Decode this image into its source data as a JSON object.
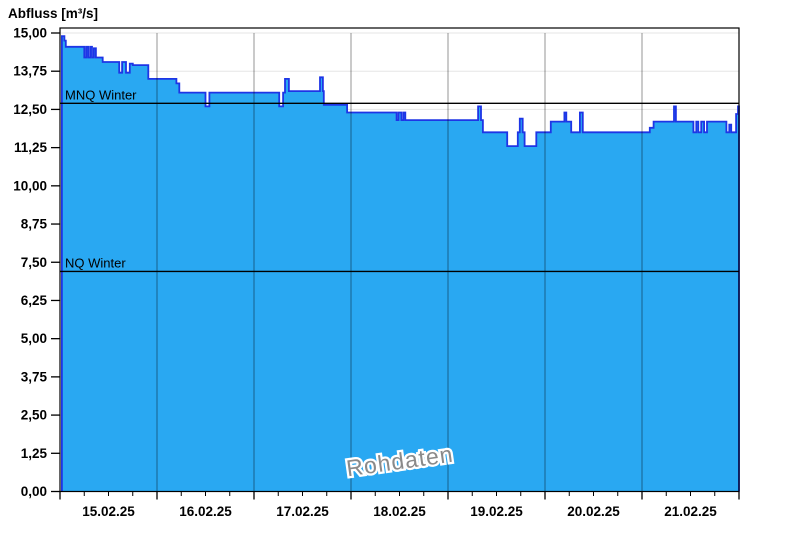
{
  "chart_data": {
    "type": "area",
    "title": "Abfluss [m³/s]",
    "watermark": "Rohdaten",
    "ylim": [
      0,
      15
    ],
    "y_tick_step": 1.25,
    "y_ticks": [
      {
        "label": "15,00",
        "value": 15.0
      },
      {
        "label": "13,75",
        "value": 13.75
      },
      {
        "label": "12,50",
        "value": 12.5
      },
      {
        "label": "11,25",
        "value": 11.25
      },
      {
        "label": "10,00",
        "value": 10.0
      },
      {
        "label": "8,75",
        "value": 8.75
      },
      {
        "label": "7,50",
        "value": 7.5
      },
      {
        "label": "6,25",
        "value": 6.25
      },
      {
        "label": "5,00",
        "value": 5.0
      },
      {
        "label": "3,75",
        "value": 3.75
      },
      {
        "label": "2,50",
        "value": 2.5
      },
      {
        "label": "1,25",
        "value": 1.25
      },
      {
        "label": "0,00",
        "value": 0.0
      }
    ],
    "x_days": [
      "15.02.25",
      "16.02.25",
      "17.02.25",
      "18.02.25",
      "19.02.25",
      "20.02.25",
      "21.02.25"
    ],
    "x_range_days": 7,
    "grid": {
      "vertical_day_lines": true,
      "horizontal_value_lines": true,
      "x_minor_ticks_per_day": 3
    },
    "reference_lines": [
      {
        "label": "MNQ Winter",
        "value": 12.7
      },
      {
        "label": "NQ Winter",
        "value": 7.2
      }
    ],
    "series": [
      {
        "name": "Abfluss Rohdaten",
        "unit": "m³/s",
        "step": true,
        "points": [
          [
            0.02,
            14.9
          ],
          [
            0.045,
            14.75
          ],
          [
            0.06,
            14.55
          ],
          [
            0.24,
            14.55
          ],
          [
            0.25,
            14.2
          ],
          [
            0.27,
            14.55
          ],
          [
            0.29,
            14.2
          ],
          [
            0.31,
            14.55
          ],
          [
            0.33,
            14.2
          ],
          [
            0.35,
            14.5
          ],
          [
            0.37,
            14.2
          ],
          [
            0.44,
            14.05
          ],
          [
            0.6,
            14.05
          ],
          [
            0.61,
            13.7
          ],
          [
            0.64,
            14.05
          ],
          [
            0.67,
            14.05
          ],
          [
            0.68,
            13.7
          ],
          [
            0.71,
            13.7
          ],
          [
            0.72,
            14.0
          ],
          [
            0.75,
            13.95
          ],
          [
            0.91,
            13.5
          ],
          [
            1.19,
            13.5
          ],
          [
            1.2,
            13.35
          ],
          [
            1.23,
            13.05
          ],
          [
            1.49,
            13.05
          ],
          [
            1.5,
            12.6
          ],
          [
            1.54,
            13.05
          ],
          [
            2.25,
            13.05
          ],
          [
            2.26,
            12.6
          ],
          [
            2.3,
            13.05
          ],
          [
            2.32,
            13.5
          ],
          [
            2.36,
            13.1
          ],
          [
            2.67,
            13.1
          ],
          [
            2.68,
            13.55
          ],
          [
            2.71,
            13.1
          ],
          [
            2.72,
            12.65
          ],
          [
            2.95,
            12.65
          ],
          [
            2.96,
            12.4
          ],
          [
            3.46,
            12.4
          ],
          [
            3.47,
            12.15
          ],
          [
            3.49,
            12.4
          ],
          [
            3.52,
            12.15
          ],
          [
            3.54,
            12.4
          ],
          [
            3.56,
            12.15
          ],
          [
            4.3,
            12.15
          ],
          [
            4.31,
            12.6
          ],
          [
            4.34,
            12.15
          ],
          [
            4.36,
            11.75
          ],
          [
            4.6,
            11.75
          ],
          [
            4.61,
            11.3
          ],
          [
            4.71,
            11.3
          ],
          [
            4.72,
            11.75
          ],
          [
            4.74,
            12.2
          ],
          [
            4.77,
            11.75
          ],
          [
            4.79,
            11.3
          ],
          [
            4.9,
            11.3
          ],
          [
            4.91,
            11.75
          ],
          [
            5.05,
            11.75
          ],
          [
            5.06,
            12.1
          ],
          [
            5.19,
            12.1
          ],
          [
            5.2,
            12.4
          ],
          [
            5.22,
            12.1
          ],
          [
            5.26,
            12.1
          ],
          [
            5.27,
            11.75
          ],
          [
            5.35,
            11.75
          ],
          [
            5.36,
            12.4
          ],
          [
            5.39,
            11.75
          ],
          [
            6.07,
            11.75
          ],
          [
            6.08,
            11.9
          ],
          [
            6.12,
            12.1
          ],
          [
            6.32,
            12.1
          ],
          [
            6.33,
            12.6
          ],
          [
            6.35,
            12.1
          ],
          [
            6.52,
            12.1
          ],
          [
            6.53,
            11.75
          ],
          [
            6.56,
            12.1
          ],
          [
            6.58,
            11.75
          ],
          [
            6.61,
            12.1
          ],
          [
            6.64,
            11.75
          ],
          [
            6.67,
            12.1
          ],
          [
            6.86,
            12.1
          ],
          [
            6.87,
            11.75
          ],
          [
            6.9,
            12.0
          ],
          [
            6.92,
            11.75
          ],
          [
            6.96,
            11.75
          ],
          [
            6.97,
            12.35
          ],
          [
            6.99,
            12.6
          ],
          [
            7.0,
            12.6
          ]
        ]
      }
    ],
    "colors": {
      "area_fill": "#29a8f2",
      "area_line": "#1e35e6",
      "reference_line": "#000000",
      "grid_horizontal": "#e6e6e6",
      "grid_vertical": "rgba(0,0,0,0.42)",
      "axis": "#000000",
      "watermark": "#8a8a8a",
      "text": "#000000"
    }
  }
}
